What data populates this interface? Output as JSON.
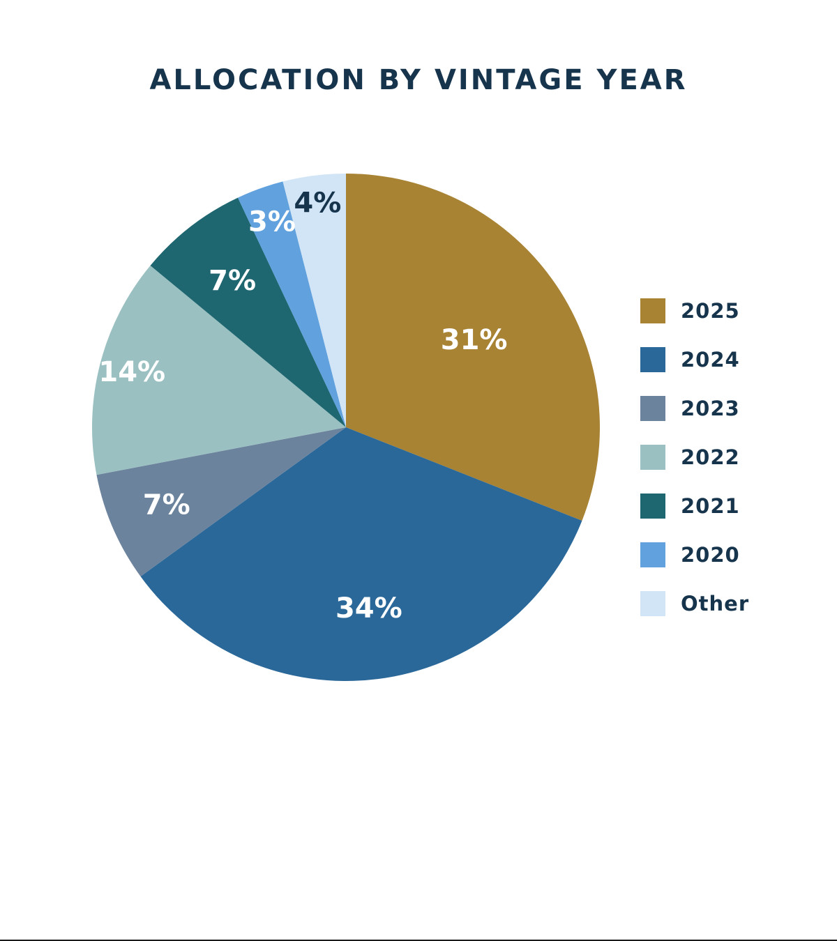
{
  "chart_data": {
    "type": "pie",
    "title": "ALLOCATION BY VINTAGE YEAR",
    "categories": [
      "2025",
      "2024",
      "2023",
      "2022",
      "2021",
      "2020",
      "Other"
    ],
    "values": [
      31,
      34,
      7,
      14,
      7,
      3,
      4
    ],
    "labels": [
      "31%",
      "34%",
      "7%",
      "14%",
      "7%",
      "3%",
      "4%"
    ],
    "colors": [
      "#a88334",
      "#2a6899",
      "#6c839d",
      "#9ac0c1",
      "#1e6670",
      "#60a1de",
      "#d1e5f7"
    ],
    "label_colors": [
      "#ffffff",
      "#ffffff",
      "#ffffff",
      "#ffffff",
      "#ffffff",
      "#ffffff",
      "#17344d"
    ],
    "start": "12 o'clock",
    "direction": "clockwise",
    "legend": "right"
  }
}
